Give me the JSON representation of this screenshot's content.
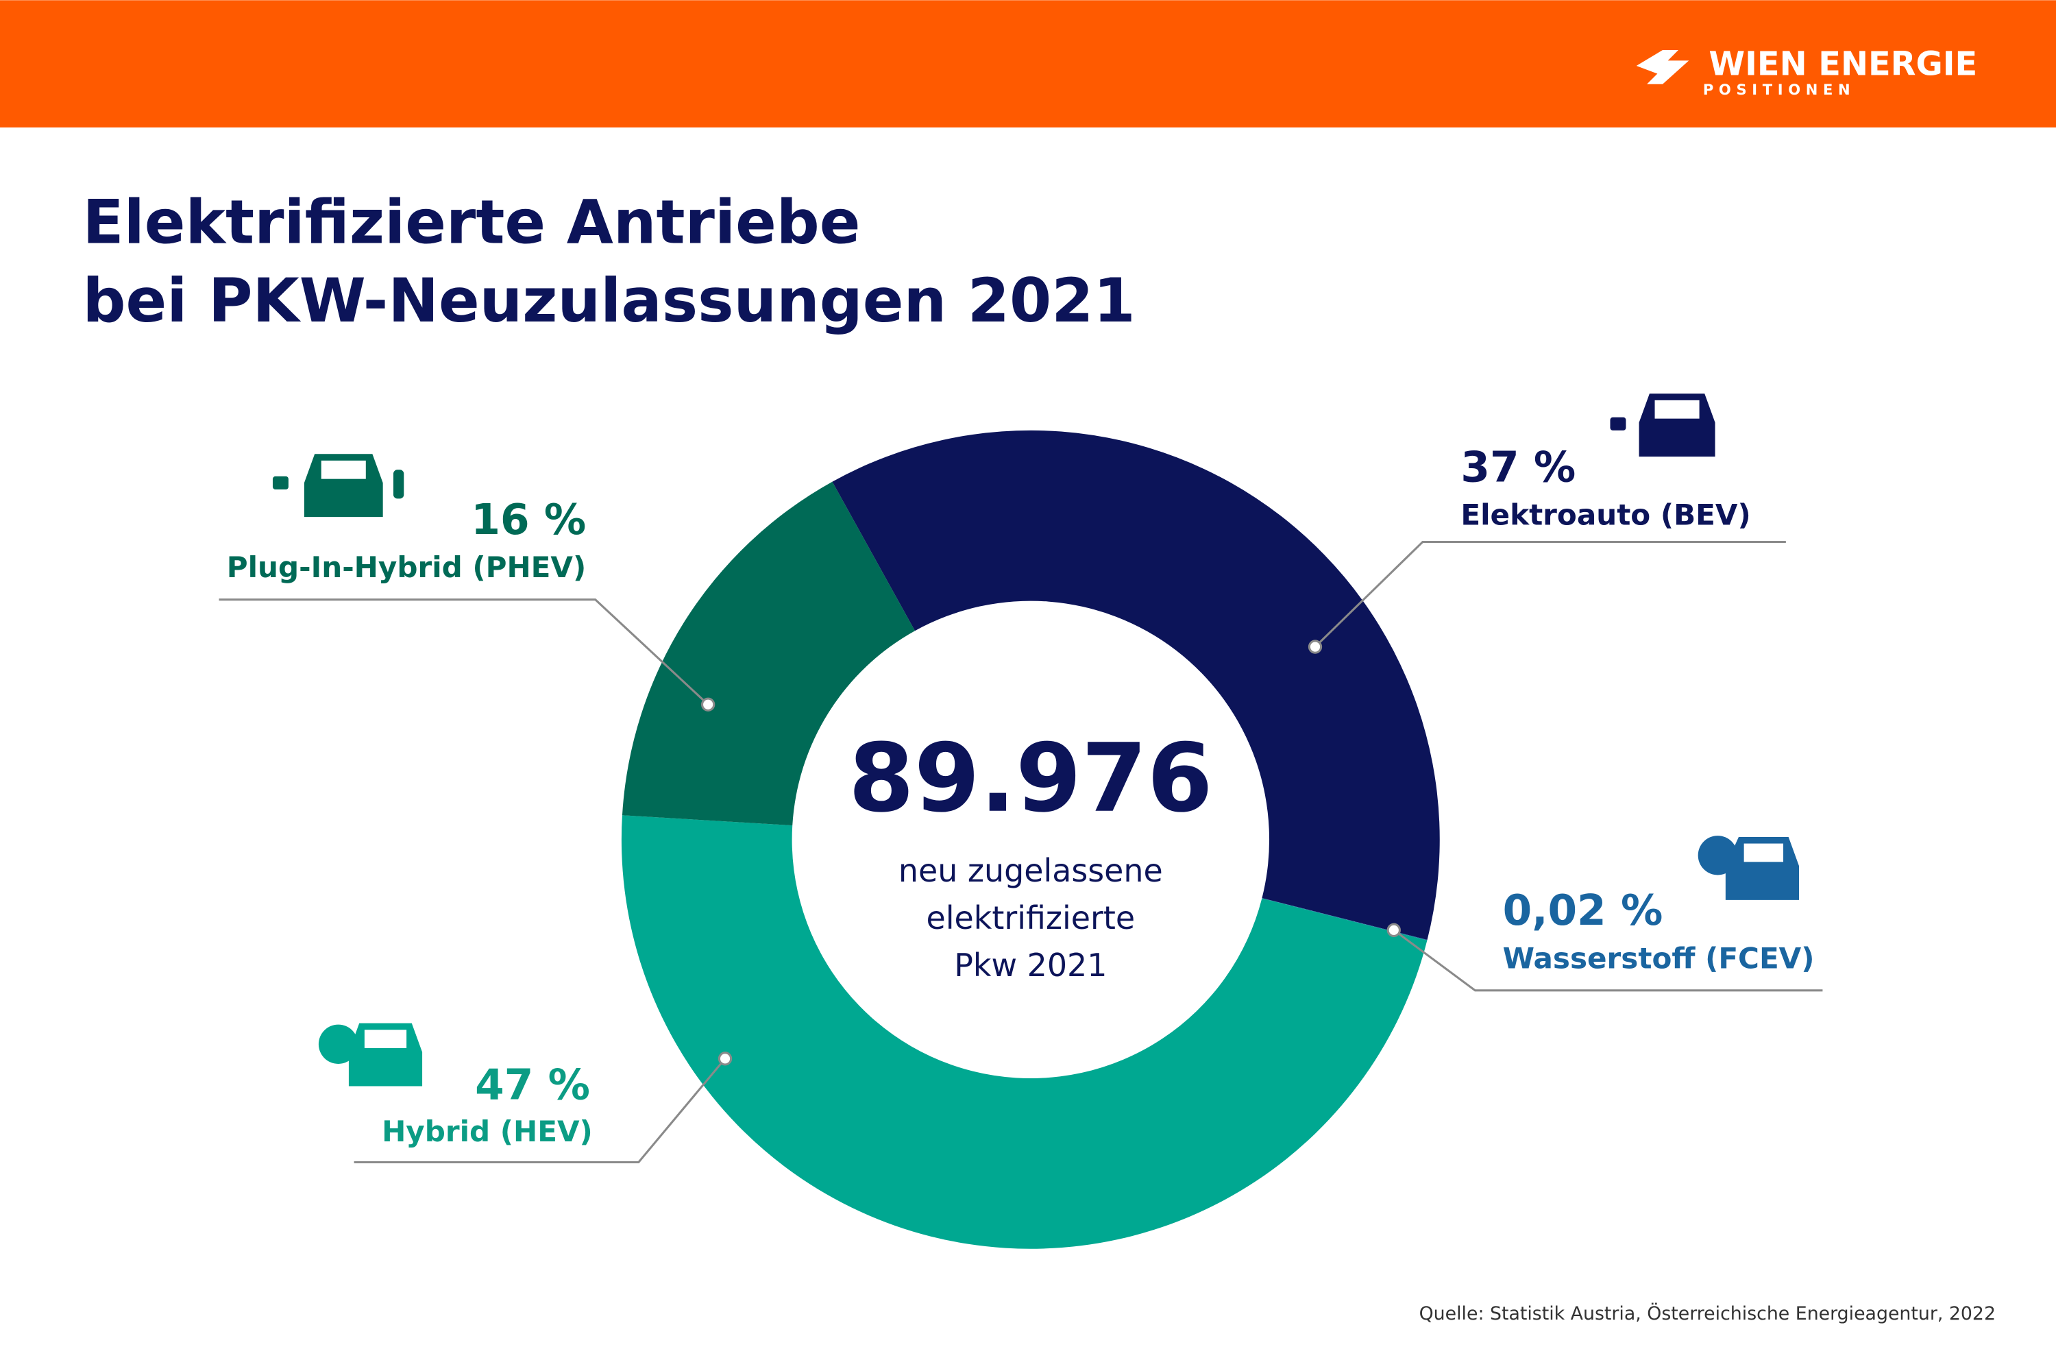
{
  "header": {
    "brand": "WIEN ENERGIE",
    "subbrand": "POSITIONEN"
  },
  "chart_data": {
    "type": "donut",
    "title_lines": [
      "Elektrifizierte Antriebe",
      "bei PKW-Neuzulassungen 2021"
    ],
    "center_value": "89.976",
    "center_lines": [
      "neu zugelassene",
      "elektrifizierte",
      "Pkw 2021"
    ],
    "categories": [
      "Elektroauto (BEV)",
      "Wasserstoff (FCEV)",
      "Hybrid (HEV)",
      "Plug-In-Hybrid (PHEV)"
    ],
    "values": [
      37,
      0.02,
      47,
      16
    ],
    "value_labels": [
      "37 %",
      "0,02 %",
      "47 %",
      "16 %"
    ],
    "colors": [
      "#0c1459",
      "#1a65a0",
      "#00a891",
      "#006a56"
    ],
    "source": "Quelle: Statistik Austria, Österreichische Energieagentur, 2022"
  }
}
